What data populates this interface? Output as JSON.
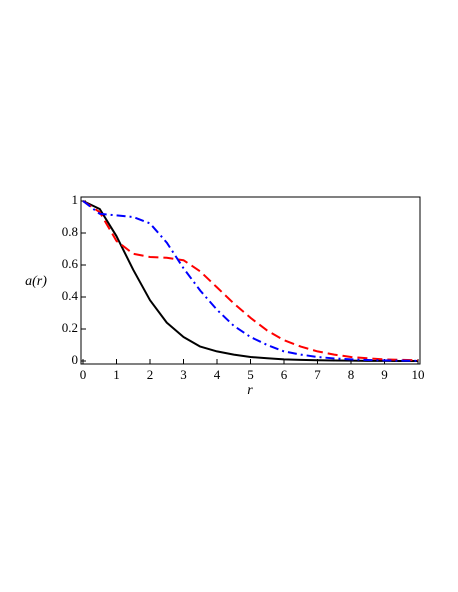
{
  "chart_data": {
    "type": "line",
    "xlabel": "r",
    "ylabel": "a(r)",
    "x": [
      0,
      0.5,
      1,
      1.5,
      2,
      2.5,
      3,
      3.5,
      4,
      4.5,
      5,
      5.5,
      6,
      6.5,
      7,
      7.5,
      8,
      8.5,
      9,
      9.5,
      10
    ],
    "series": [
      {
        "color": "#000000",
        "dash": "solid",
        "values": [
          1,
          0.95,
          0.78,
          0.57,
          0.38,
          0.24,
          0.15,
          0.09,
          0.06,
          0.04,
          0.025,
          0.017,
          0.01,
          0.007,
          0.005,
          0.003,
          0.002,
          0.001,
          0.001,
          0,
          0
        ]
      },
      {
        "color": "#ff0000",
        "dash": "dashed",
        "values": [
          1,
          0.93,
          0.75,
          0.67,
          0.65,
          0.645,
          0.63,
          0.56,
          0.46,
          0.36,
          0.27,
          0.19,
          0.13,
          0.09,
          0.06,
          0.04,
          0.025,
          0.017,
          0.01,
          0.007,
          0.005
        ]
      },
      {
        "color": "#0000ff",
        "dash": "dashdot",
        "values": [
          1,
          0.92,
          0.91,
          0.9,
          0.86,
          0.74,
          0.58,
          0.44,
          0.32,
          0.22,
          0.15,
          0.1,
          0.06,
          0.04,
          0.025,
          0.016,
          0.01,
          0.006,
          0.004,
          0.002,
          0.001
        ]
      }
    ],
    "xlim": [
      0,
      10
    ],
    "ylim": [
      0,
      1
    ],
    "xticks": [
      0,
      1,
      2,
      3,
      4,
      5,
      6,
      7,
      8,
      9,
      10
    ],
    "yticks": [
      0,
      0.2,
      0.4,
      0.6,
      0.8,
      1
    ],
    "grid": false
  }
}
